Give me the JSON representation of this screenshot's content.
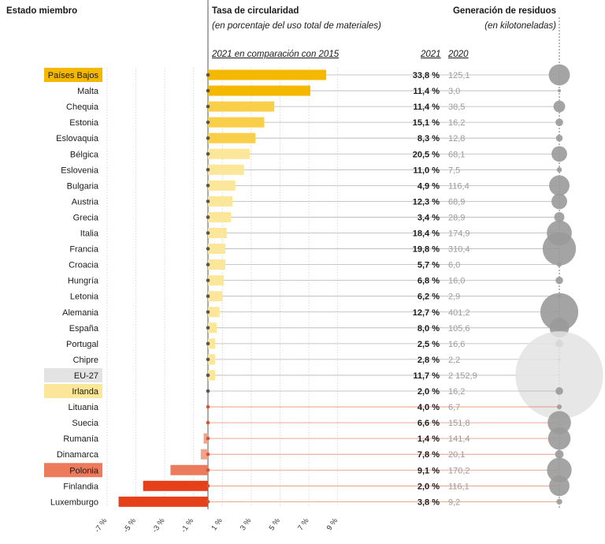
{
  "headers": {
    "member_state": "Estado miembro",
    "rate_title": "Tasa de circularidad",
    "rate_subtitle": "(en porcentaje del uso total de materiales)",
    "comparison_label": "2021 en comparación con 2015",
    "year_2021": "2021",
    "year_2020": "2020",
    "waste_title": "Generación de residuos",
    "waste_subtitle": "(en kilotoneladas)"
  },
  "colors": {
    "dark_yellow": "#f5b800",
    "mid_yellow": "#f9cf4a",
    "light_yellow": "#fbe69a",
    "eu_grey": "#e3e3e3",
    "light_red": "#f2a38a",
    "mid_red": "#ec7b5e",
    "dark_red": "#e6401a",
    "bubble_grey": "#9a9a9a",
    "line_grey": "#b5b5b5",
    "line_red": "#e98c73"
  },
  "chart_data": {
    "type": "bar",
    "orientation": "horizontal",
    "xlim": [
      -7,
      10
    ],
    "x_ticks": [
      "-7 %",
      "-5 %",
      "-3 %",
      "-1 %",
      "1 %",
      "3 %",
      "5 %",
      "7 %",
      "9 %"
    ],
    "x_tick_values": [
      -7,
      -5,
      -3,
      -1,
      1,
      3,
      5,
      7,
      9
    ],
    "rows": [
      {
        "country": "Países Bajos",
        "change": 8.2,
        "rate_2021": "33,8 %",
        "waste_2020": "125,1",
        "waste_value": 125.1,
        "color": "#f5b800",
        "highlight": "#f5b800"
      },
      {
        "country": "Malta",
        "change": 7.1,
        "rate_2021": "11,4 %",
        "waste_2020": "3,0",
        "waste_value": 3.0,
        "color": "#f5b800",
        "highlight": ""
      },
      {
        "country": "Chequia",
        "change": 4.6,
        "rate_2021": "11,4 %",
        "waste_2020": "38,5",
        "waste_value": 38.5,
        "color": "#f9cf4a",
        "highlight": ""
      },
      {
        "country": "Estonia",
        "change": 3.9,
        "rate_2021": "15,1 %",
        "waste_2020": "16,2",
        "waste_value": 16.2,
        "color": "#f9cf4a",
        "highlight": ""
      },
      {
        "country": "Eslovaquia",
        "change": 3.3,
        "rate_2021": "8,3 %",
        "waste_2020": "12,8",
        "waste_value": 12.8,
        "color": "#f9cf4a",
        "highlight": ""
      },
      {
        "country": "Bélgica",
        "change": 2.9,
        "rate_2021": "20,5 %",
        "waste_2020": "68,1",
        "waste_value": 68.1,
        "color": "#fbe69a",
        "highlight": ""
      },
      {
        "country": "Eslovenia",
        "change": 2.5,
        "rate_2021": "11,0 %",
        "waste_2020": "7,5",
        "waste_value": 7.5,
        "color": "#fbe69a",
        "highlight": ""
      },
      {
        "country": "Bulgaria",
        "change": 1.9,
        "rate_2021": "4,9 %",
        "waste_2020": "116,4",
        "waste_value": 116.4,
        "color": "#fbe69a",
        "highlight": ""
      },
      {
        "country": "Austria",
        "change": 1.7,
        "rate_2021": "12,3 %",
        "waste_2020": "68,9",
        "waste_value": 68.9,
        "color": "#fbe69a",
        "highlight": ""
      },
      {
        "country": "Grecia",
        "change": 1.6,
        "rate_2021": "3,4 %",
        "waste_2020": "28,9",
        "waste_value": 28.9,
        "color": "#fbe69a",
        "highlight": ""
      },
      {
        "country": "Italia",
        "change": 1.3,
        "rate_2021": "18,4 %",
        "waste_2020": "174,9",
        "waste_value": 174.9,
        "color": "#fbe69a",
        "highlight": ""
      },
      {
        "country": "Francia",
        "change": 1.2,
        "rate_2021": "19,8 %",
        "waste_2020": "310,4",
        "waste_value": 310.4,
        "color": "#fbe69a",
        "highlight": ""
      },
      {
        "country": "Croacia",
        "change": 1.2,
        "rate_2021": "5,7 %",
        "waste_2020": "6,0",
        "waste_value": 6.0,
        "color": "#fbe69a",
        "highlight": ""
      },
      {
        "country": "Hungría",
        "change": 1.1,
        "rate_2021": "6,8 %",
        "waste_2020": "16,0",
        "waste_value": 16.0,
        "color": "#fbe69a",
        "highlight": ""
      },
      {
        "country": "Letonia",
        "change": 1.0,
        "rate_2021": "6,2 %",
        "waste_2020": "2,9",
        "waste_value": 2.9,
        "color": "#fbe69a",
        "highlight": ""
      },
      {
        "country": "Alemania",
        "change": 0.8,
        "rate_2021": "12,7 %",
        "waste_2020": "401,2",
        "waste_value": 401.2,
        "color": "#fbe69a",
        "highlight": ""
      },
      {
        "country": "España",
        "change": 0.6,
        "rate_2021": "8,0 %",
        "waste_2020": "105,6",
        "waste_value": 105.6,
        "color": "#fbe69a",
        "highlight": ""
      },
      {
        "country": "Portugal",
        "change": 0.5,
        "rate_2021": "2,5 %",
        "waste_2020": "16,6",
        "waste_value": 16.6,
        "color": "#fbe69a",
        "highlight": ""
      },
      {
        "country": "Chipre",
        "change": 0.5,
        "rate_2021": "2,8 %",
        "waste_2020": "2,2",
        "waste_value": 2.2,
        "color": "#fbe69a",
        "highlight": ""
      },
      {
        "country": "EU-27",
        "change": 0.5,
        "rate_2021": "11,7 %",
        "waste_2020": "2 152,9",
        "waste_value": 2152.9,
        "color": "#fbe69a",
        "highlight": "#e3e3e3"
      },
      {
        "country": "Irlanda",
        "change": 0.0,
        "rate_2021": "2,0 %",
        "waste_2020": "16,2",
        "waste_value": 16.2,
        "color": "#fbe69a",
        "highlight": "#fbe69a"
      },
      {
        "country": "Lituania",
        "change": 0.0,
        "rate_2021": "4,0 %",
        "waste_2020": "6,7",
        "waste_value": 6.7,
        "color": "#f2a38a",
        "highlight": ""
      },
      {
        "country": "Suecia",
        "change": 0.0,
        "rate_2021": "6,6 %",
        "waste_2020": "151,8",
        "waste_value": 151.8,
        "color": "#f2a38a",
        "highlight": ""
      },
      {
        "country": "Rumanía",
        "change": -0.3,
        "rate_2021": "1,4 %",
        "waste_2020": "141,4",
        "waste_value": 141.4,
        "color": "#f2a38a",
        "highlight": ""
      },
      {
        "country": "Dinamarca",
        "change": -0.5,
        "rate_2021": "7,8 %",
        "waste_2020": "20,1",
        "waste_value": 20.1,
        "color": "#f2a38a",
        "highlight": ""
      },
      {
        "country": "Polonia",
        "change": -2.6,
        "rate_2021": "9,1 %",
        "waste_2020": "170,2",
        "waste_value": 170.2,
        "color": "#ec7b5e",
        "highlight": "#ec7b5e"
      },
      {
        "country": "Finlandia",
        "change": -4.5,
        "rate_2021": "2,0 %",
        "waste_2020": "116,1",
        "waste_value": 116.1,
        "color": "#e6401a",
        "highlight": ""
      },
      {
        "country": "Luxemburgo",
        "change": -6.2,
        "rate_2021": "3,8 %",
        "waste_2020": "9,2",
        "waste_value": 9.2,
        "color": "#e6401a",
        "highlight": ""
      }
    ]
  }
}
